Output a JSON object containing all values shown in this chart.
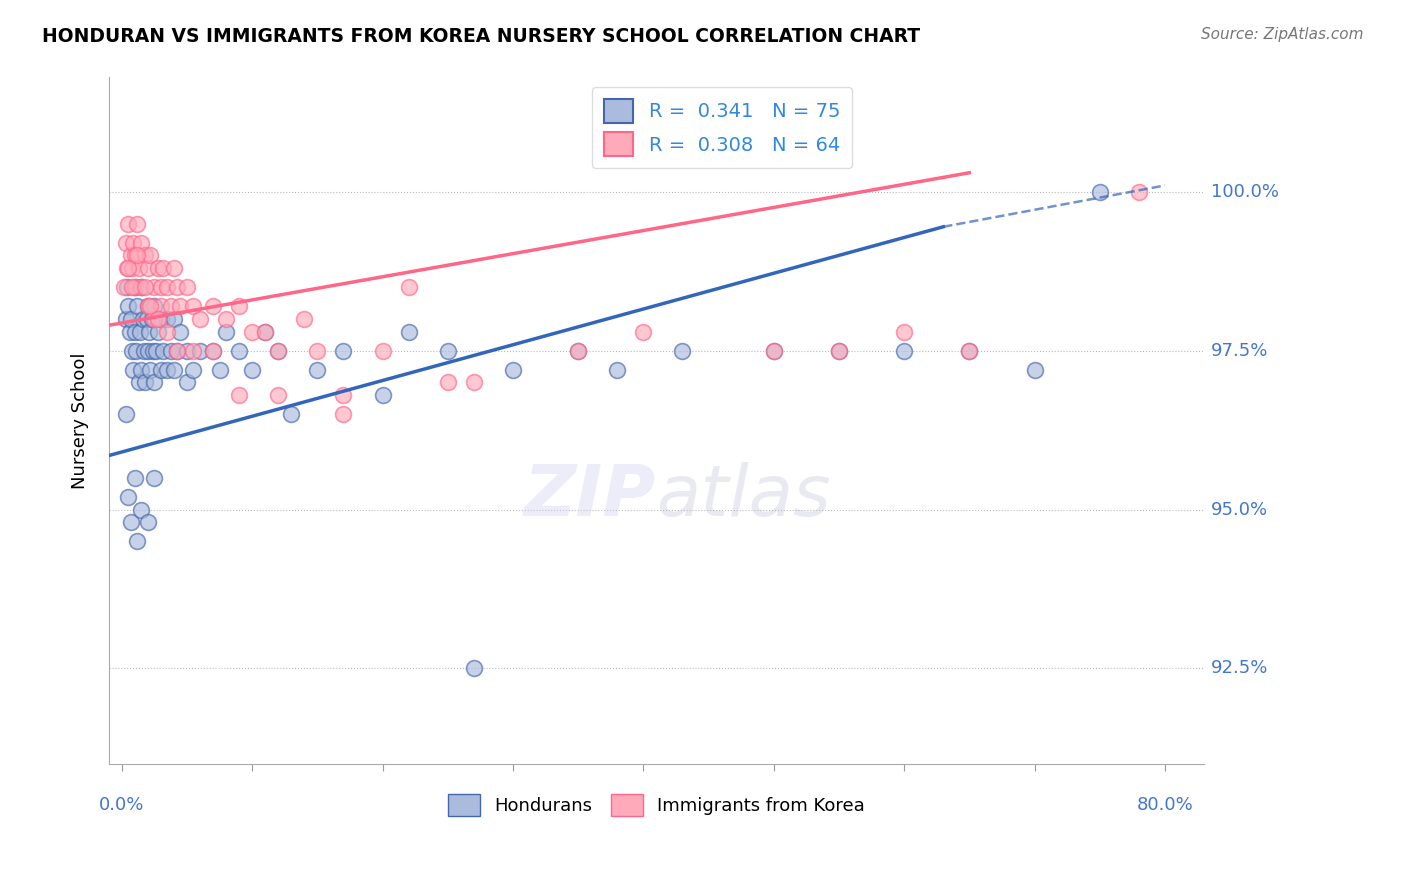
{
  "title": "HONDURAN VS IMMIGRANTS FROM KOREA NURSERY SCHOOL CORRELATION CHART",
  "source": "Source: ZipAtlas.com",
  "ylabel": "Nursery School",
  "ytick_values": [
    92.5,
    95.0,
    97.5,
    100.0
  ],
  "ytick_labels": [
    "92.5%",
    "95.0%",
    "97.5%",
    "100.0%"
  ],
  "xlim_min": -1.0,
  "xlim_max": 83.0,
  "ylim_min": 91.0,
  "ylim_max": 101.8,
  "legend_line1": "R =  0.341   N = 75",
  "legend_line2": "R =  0.308   N = 64",
  "blue_color": "#AABBDD",
  "blue_edge_color": "#4466AA",
  "pink_color": "#FFAABB",
  "pink_edge_color": "#FF6688",
  "blue_line_color": "#3366BB",
  "pink_line_color": "#FF6688",
  "watermark": "ZIPatlas",
  "blue_line_x0": -1.0,
  "blue_line_y0": 95.85,
  "blue_line_x1": 80.0,
  "blue_line_y1": 100.1,
  "blue_dash_x0": 63.0,
  "blue_dash_y0": 99.45,
  "blue_dash_x1": 80.0,
  "blue_dash_y1": 100.1,
  "pink_line_x0": -1.0,
  "pink_line_y0": 97.9,
  "pink_line_x1": 65.0,
  "pink_line_y1": 100.3,
  "blue_scatter_x": [
    0.3,
    0.4,
    0.5,
    0.6,
    0.7,
    0.8,
    0.9,
    1.0,
    1.0,
    1.1,
    1.2,
    1.3,
    1.4,
    1.5,
    1.5,
    1.6,
    1.7,
    1.8,
    1.9,
    2.0,
    2.0,
    2.1,
    2.2,
    2.3,
    2.4,
    2.5,
    2.5,
    2.6,
    2.8,
    3.0,
    3.0,
    3.2,
    3.5,
    3.5,
    3.8,
    4.0,
    4.0,
    4.2,
    4.5,
    5.0,
    5.0,
    5.5,
    6.0,
    7.0,
    7.5,
    8.0,
    9.0,
    10.0,
    11.0,
    12.0,
    13.0,
    15.0,
    17.0,
    20.0,
    22.0,
    25.0,
    27.0,
    30.0,
    35.0,
    38.0,
    43.0,
    50.0,
    55.0,
    60.0,
    65.0,
    70.0,
    75.0,
    0.3,
    0.5,
    0.7,
    1.0,
    1.2,
    1.5,
    2.0,
    2.5
  ],
  "blue_scatter_y": [
    98.0,
    98.5,
    98.2,
    97.8,
    98.0,
    97.5,
    97.2,
    98.5,
    97.8,
    97.5,
    98.2,
    97.0,
    97.8,
    98.5,
    97.2,
    98.0,
    97.5,
    97.0,
    98.0,
    98.2,
    97.5,
    97.8,
    97.2,
    98.0,
    97.5,
    98.2,
    97.0,
    97.5,
    97.8,
    98.0,
    97.2,
    97.5,
    98.0,
    97.2,
    97.5,
    98.0,
    97.2,
    97.5,
    97.8,
    97.0,
    97.5,
    97.2,
    97.5,
    97.5,
    97.2,
    97.8,
    97.5,
    97.2,
    97.8,
    97.5,
    96.5,
    97.2,
    97.5,
    96.8,
    97.8,
    97.5,
    92.5,
    97.2,
    97.5,
    97.2,
    97.5,
    97.5,
    97.5,
    97.5,
    97.5,
    97.2,
    100.0,
    96.5,
    95.2,
    94.8,
    95.5,
    94.5,
    95.0,
    94.8,
    95.5
  ],
  "pink_scatter_x": [
    0.2,
    0.3,
    0.4,
    0.5,
    0.7,
    0.8,
    0.9,
    1.0,
    1.0,
    1.2,
    1.3,
    1.5,
    1.5,
    1.8,
    2.0,
    2.0,
    2.2,
    2.5,
    2.5,
    2.8,
    3.0,
    3.0,
    3.2,
    3.5,
    3.8,
    4.0,
    4.2,
    4.5,
    5.0,
    5.5,
    6.0,
    7.0,
    8.0,
    9.0,
    10.0,
    11.0,
    12.0,
    14.0,
    15.0,
    17.0,
    20.0,
    22.0,
    27.0,
    35.0,
    40.0,
    50.0,
    55.0,
    60.0,
    65.0,
    78.0,
    0.5,
    0.8,
    1.2,
    1.8,
    2.2,
    2.8,
    3.5,
    4.2,
    5.5,
    7.0,
    9.0,
    12.0,
    17.0,
    25.0
  ],
  "pink_scatter_y": [
    98.5,
    99.2,
    98.8,
    99.5,
    99.0,
    98.8,
    99.2,
    98.5,
    99.0,
    99.5,
    98.8,
    99.2,
    98.5,
    99.0,
    98.8,
    98.2,
    99.0,
    98.5,
    98.0,
    98.8,
    98.5,
    98.2,
    98.8,
    98.5,
    98.2,
    98.8,
    98.5,
    98.2,
    98.5,
    98.2,
    98.0,
    98.2,
    98.0,
    98.2,
    97.8,
    97.8,
    97.5,
    98.0,
    97.5,
    96.8,
    97.5,
    98.5,
    97.0,
    97.5,
    97.8,
    97.5,
    97.5,
    97.8,
    97.5,
    100.0,
    98.8,
    98.5,
    99.0,
    98.5,
    98.2,
    98.0,
    97.8,
    97.5,
    97.5,
    97.5,
    96.8,
    96.8,
    96.5,
    97.0
  ]
}
